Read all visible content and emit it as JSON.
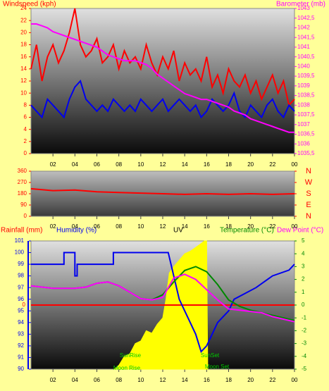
{
  "chart_data": [
    {
      "type": "line",
      "ylabel": "Windspeed (kph)",
      "y2label": "Barometer (mb)",
      "xlim": [
        0,
        24
      ],
      "xticks": [
        {
          "value": 2,
          "label": "02"
        },
        {
          "value": 4,
          "label": "04"
        },
        {
          "value": 6,
          "label": "06"
        },
        {
          "value": 8,
          "label": "08"
        },
        10,
        12,
        14,
        16,
        18,
        20,
        22,
        {
          "value": 24,
          "label": "00"
        }
      ],
      "ylim": [
        0,
        24
      ],
      "yticks": [
        0,
        2,
        4,
        6,
        8,
        10,
        12,
        14,
        16,
        18,
        20,
        22,
        24
      ],
      "y2lim": [
        1035.5,
        1043
      ],
      "y2ticks": [
        {
          "value": 1035.5,
          "label": "1035,5"
        },
        1036,
        {
          "value": 1036.5,
          "label": "1036,5"
        },
        1037,
        {
          "value": 1037.5,
          "label": "1037,5"
        },
        1038,
        {
          "value": 1038.5,
          "label": "1038,5"
        },
        1039,
        {
          "value": 1039.5,
          "label": "1039,5"
        },
        1040,
        {
          "value": 1040.5,
          "label": "1040,5"
        },
        1041,
        {
          "value": 1041.5,
          "label": "1041,5"
        },
        1042,
        {
          "value": 1042.5,
          "label": "1042,5"
        },
        1043
      ],
      "x": [
        0,
        0.5,
        1,
        1.5,
        2,
        2.5,
        3,
        3.5,
        4,
        4.5,
        5,
        5.5,
        6,
        6.5,
        7,
        7.5,
        8,
        8.5,
        9,
        9.5,
        10,
        10.5,
        11,
        11.5,
        12,
        12.5,
        13,
        13.5,
        14,
        14.5,
        15,
        15.5,
        16,
        16.5,
        17,
        17.5,
        18,
        18.5,
        19,
        19.5,
        20,
        20.5,
        21,
        21.5,
        22,
        22.5,
        23,
        23.5,
        24
      ],
      "series": [
        {
          "color": "#ff0000",
          "values": [
            14,
            18,
            12,
            16,
            18,
            15,
            17,
            20,
            24,
            18,
            16,
            17,
            19,
            15,
            16,
            18,
            14,
            17,
            15,
            16,
            14,
            18,
            15,
            13,
            16,
            14,
            17,
            12,
            15,
            13,
            14,
            12,
            16,
            11,
            13,
            10,
            14,
            12,
            11,
            13,
            10,
            12,
            9,
            11,
            13,
            10,
            12,
            8,
            9
          ]
        },
        {
          "color": "#0000ee",
          "values": [
            8,
            7,
            6,
            9,
            8,
            7,
            6,
            9,
            11,
            12,
            9,
            8,
            7,
            8,
            7,
            9,
            8,
            7,
            8,
            7,
            9,
            8,
            7,
            8,
            9,
            7,
            8,
            9,
            8,
            7,
            8,
            6,
            7,
            9,
            8,
            7,
            8,
            10,
            7,
            6,
            8,
            7,
            6,
            8,
            9,
            7,
            6,
            8,
            7
          ]
        },
        {
          "color": "#ff00ff",
          "axis": "y2",
          "values": [
            1042.2,
            1042.2,
            1042.1,
            1042.0,
            1041.8,
            1041.7,
            1041.6,
            1041.5,
            1041.4,
            1041.3,
            1041.2,
            1041.1,
            1041.0,
            1040.8,
            1040.6,
            1040.5,
            1040.4,
            1040.3,
            1040.3,
            1040.3,
            1040.2,
            1040.1,
            1039.9,
            1039.6,
            1039.4,
            1039.2,
            1039.0,
            1038.8,
            1038.6,
            1038.5,
            1038.4,
            1038.3,
            1038.3,
            1038.2,
            1038.1,
            1038.0,
            1037.9,
            1037.7,
            1037.6,
            1037.5,
            1037.3,
            1037.2,
            1037.1,
            1037.0,
            1036.9,
            1036.8,
            1036.7,
            1036.6,
            1036.6
          ]
        }
      ]
    },
    {
      "type": "line",
      "xlim": [
        0,
        24
      ],
      "xticks": [
        {
          "value": 2,
          "label": "02"
        },
        {
          "value": 4,
          "label": "04"
        },
        {
          "value": 6,
          "label": "06"
        },
        {
          "value": 8,
          "label": "08"
        },
        10,
        12,
        14,
        16,
        18,
        20,
        22,
        {
          "value": 24,
          "label": "00"
        }
      ],
      "ylim": [
        0,
        360
      ],
      "yticks": [
        0,
        90,
        180,
        270,
        360
      ],
      "y2lim": [
        0,
        360
      ],
      "y2ticks": [
        {
          "value": 360,
          "label": "N"
        },
        {
          "value": 270,
          "label": "W"
        },
        {
          "value": 180,
          "label": "S"
        },
        {
          "value": 90,
          "label": "E"
        },
        {
          "value": 0,
          "label": "N"
        }
      ],
      "x": [
        0,
        2,
        4,
        6,
        8,
        10,
        12,
        14,
        16,
        18,
        20,
        22,
        24
      ],
      "series": [
        {
          "color": "#ff0000",
          "values": [
            220,
            205,
            210,
            195,
            190,
            185,
            180,
            175,
            180,
            175,
            180,
            175,
            180
          ]
        }
      ]
    },
    {
      "type": "line",
      "rainlabel": "Rainfall (mm)",
      "ylabel": "Humidity (%)",
      "uvlabel": "UV",
      "y2label": "Temperature (°C)",
      "dewlabel": "Dew Point (°C)",
      "annotations": [
        "SunRise",
        "SunSet",
        "Moon Rise",
        "Moon Set"
      ],
      "xlim": [
        0,
        24
      ],
      "xticks": [
        {
          "value": 2,
          "label": "02"
        },
        {
          "value": 4,
          "label": "04"
        },
        {
          "value": 6,
          "label": "06"
        },
        {
          "value": 8,
          "label": "08"
        },
        10,
        12,
        14,
        16,
        18,
        20,
        22,
        {
          "value": 24,
          "label": "00"
        }
      ],
      "ylim": [
        90,
        101
      ],
      "yticks": [
        90,
        91,
        92,
        93,
        94,
        95,
        96,
        97,
        98,
        99,
        100,
        101
      ],
      "y2lim": [
        -5,
        5
      ],
      "y2ticks": [
        -5,
        -4,
        -3,
        -2,
        -1,
        0,
        1,
        2,
        3,
        4,
        5
      ],
      "rainticks": [
        0
      ],
      "y3lim": [
        0,
        10
      ],
      "x": [
        0,
        1,
        2,
        3,
        4,
        5,
        6,
        7,
        8,
        9,
        10,
        11,
        12,
        13,
        14,
        15,
        16,
        17,
        18,
        19,
        20,
        21,
        22,
        23,
        24
      ],
      "series": [
        {
          "color": "#ffff00",
          "axis": "y3",
          "kind": "area",
          "x": [
            7.6,
            8,
            8.5,
            9,
            9.5,
            10,
            10.5,
            11,
            11.5,
            12,
            12.3,
            12.6,
            13,
            13.5,
            14,
            14.5,
            15,
            15.5,
            15.8,
            16,
            16.1
          ],
          "values": [
            0,
            0.3,
            1,
            1.2,
            2,
            2.2,
            3,
            2.8,
            3.5,
            4,
            5.5,
            7.5,
            8,
            8.5,
            9,
            9.2,
            9.5,
            9.8,
            10,
            10,
            0
          ]
        },
        {
          "color": "#ff0000",
          "axis": "y2",
          "x": [
            0,
            24
          ],
          "values": [
            0,
            0
          ]
        },
        {
          "color": "#0000ee",
          "x": [
            0,
            3,
            3,
            4,
            4,
            4.2,
            4.2,
            7.5,
            7.5,
            12.5,
            13,
            13.5,
            14,
            14.5,
            15,
            15.5,
            16,
            16.5,
            17,
            18,
            18.5,
            19.5,
            20.5,
            22,
            23.5,
            24
          ],
          "values": [
            99,
            99,
            100,
            100,
            98,
            98,
            99,
            99,
            100,
            100,
            98,
            96,
            95,
            94,
            93,
            91.5,
            92,
            93,
            94,
            95,
            96,
            96.5,
            97,
            98,
            98.5,
            99
          ]
        },
        {
          "color": "#008800",
          "axis": "y2",
          "values": [
            1.5,
            1.4,
            1.3,
            1.3,
            1.3,
            1.4,
            1.7,
            1.8,
            1.5,
            1.0,
            0.5,
            0.4,
            0.8,
            1.8,
            2.7,
            3.0,
            2.6,
            1.6,
            0.4,
            -0.1,
            -0.4,
            -0.6,
            -0.8,
            -1.0,
            -1.2
          ]
        },
        {
          "color": "#ff00ff",
          "axis": "y2",
          "values": [
            1.5,
            1.4,
            1.3,
            1.3,
            1.3,
            1.4,
            1.7,
            1.8,
            1.5,
            1.0,
            0.5,
            0.4,
            0.6,
            2.1,
            2.4,
            2.0,
            1.2,
            0.4,
            -0.3,
            -0.4,
            -0.5,
            -0.6,
            -0.9,
            -1.1,
            -1.3
          ]
        }
      ]
    }
  ]
}
